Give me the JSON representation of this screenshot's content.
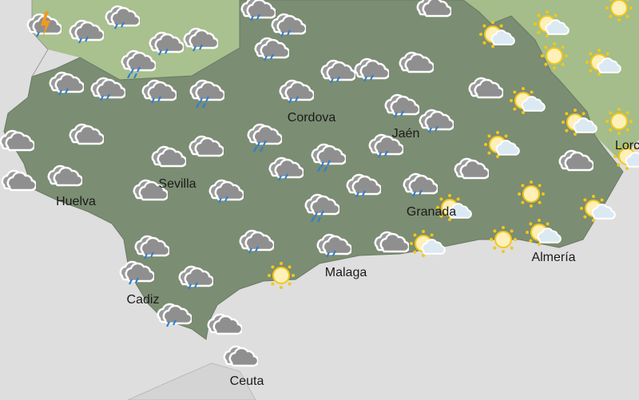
{
  "map": {
    "colors": {
      "sea": "#dedede",
      "foreign_land": "#d2d2d2",
      "neighbour_regions": "#a9c08f",
      "andalusia": "#7b8d72",
      "cloud": "#8f8f8f",
      "rain": "#2f7fd0",
      "sun": "#f3c719",
      "lightning": "#f39a1a"
    },
    "cities": [
      {
        "name": "Cordova"
      },
      {
        "name": "Jaén"
      },
      {
        "name": "Sevilla"
      },
      {
        "name": "Huelva"
      },
      {
        "name": "Cadiz"
      },
      {
        "name": "Malaga"
      },
      {
        "name": "Granada"
      },
      {
        "name": "Almería"
      },
      {
        "name": "Lorca"
      },
      {
        "name": "Ceuta"
      }
    ],
    "forecast_icons": [
      "storm",
      "rain",
      "rain",
      "rain",
      "rain",
      "heavy-rain",
      "rain",
      "rain",
      "rain",
      "heavy-rain",
      "rain",
      "rain",
      "rain",
      "rain",
      "cloudy",
      "cloudy",
      "cloudy",
      "cloudy",
      "heavy-rain",
      "cloudy",
      "cloudy",
      "cloudy",
      "rain",
      "rain",
      "rain",
      "rain",
      "cloudy",
      "cloudy",
      "rain",
      "rain",
      "heavy-rain",
      "rain",
      "rain",
      "rain",
      "cloudy",
      "cloudy",
      "heavy-rain",
      "rain",
      "rain",
      "cloudy",
      "rain",
      "rain",
      "rain",
      "rain",
      "cloudy",
      "cloudy",
      "sunny",
      "partly-cloudy",
      "partly-cloudy",
      "partly-cloudy",
      "partly-cloudy",
      "sunny",
      "sunny",
      "partly-cloudy",
      "partly-cloudy",
      "partly-cloudy",
      "cloudy",
      "partly-cloudy",
      "sunny",
      "partly-cloudy",
      "sunny",
      "partly-cloudy",
      "sunny",
      "partly-cloudy"
    ]
  }
}
